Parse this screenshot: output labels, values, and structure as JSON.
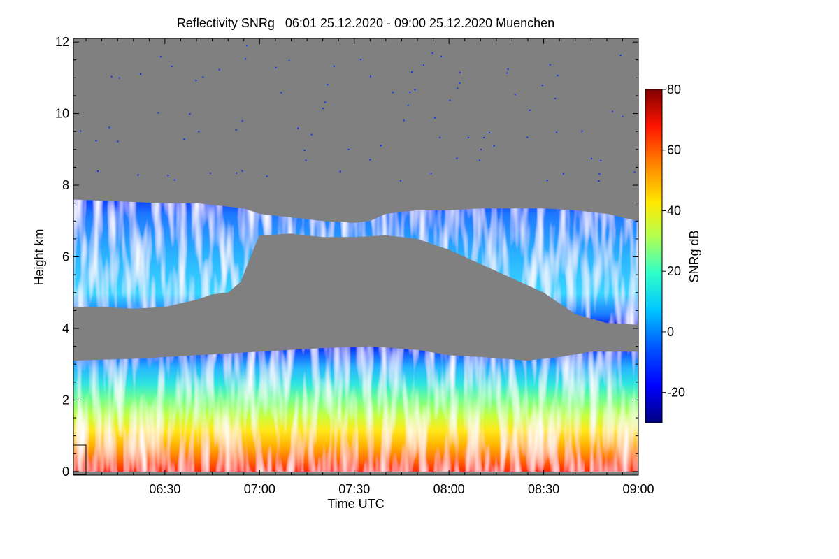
{
  "chart_data": {
    "type": "heatmap",
    "title": "Reflectivity SNRg   06:01 25.12.2020 - 09:00 25.12.2020 Muenchen",
    "xlabel": "Time UTC",
    "ylabel": "Height km",
    "xlim_minutes": [
      361,
      540
    ],
    "x_ticks": [
      {
        "value": 390,
        "label": "06:30"
      },
      {
        "value": 420,
        "label": "07:00"
      },
      {
        "value": 450,
        "label": "07:30"
      },
      {
        "value": 480,
        "label": "08:00"
      },
      {
        "value": 510,
        "label": "08:30"
      },
      {
        "value": 540,
        "label": "09:00"
      }
    ],
    "ylim": [
      -0.1,
      12.1
    ],
    "y_ticks": [
      0,
      2,
      4,
      6,
      8,
      10,
      12
    ],
    "background_color": "#808080",
    "colorbar": {
      "label": "SNRg dB",
      "range": [
        -30,
        80
      ],
      "ticks": [
        -20,
        0,
        20,
        40,
        60,
        80
      ],
      "colormap": "jet"
    },
    "layers": [
      {
        "name": "upper cloud layer",
        "top": [
          [
            361,
            7.6
          ],
          [
            375,
            7.55
          ],
          [
            390,
            7.5
          ],
          [
            400,
            7.5
          ],
          [
            410,
            7.4
          ],
          [
            415,
            7.35
          ],
          [
            420,
            7.2
          ],
          [
            430,
            7.1
          ],
          [
            440,
            7.0
          ],
          [
            450,
            6.95
          ],
          [
            455,
            7.0
          ],
          [
            460,
            7.2
          ],
          [
            470,
            7.3
          ],
          [
            480,
            7.3
          ],
          [
            490,
            7.35
          ],
          [
            500,
            7.35
          ],
          [
            510,
            7.35
          ],
          [
            520,
            7.3
          ],
          [
            530,
            7.2
          ],
          [
            540,
            7.0
          ]
        ],
        "bottom": [
          [
            361,
            4.6
          ],
          [
            370,
            4.6
          ],
          [
            380,
            4.55
          ],
          [
            390,
            4.6
          ],
          [
            400,
            4.8
          ],
          [
            405,
            4.95
          ],
          [
            410,
            5.0
          ],
          [
            414,
            5.3
          ],
          [
            418,
            6.2
          ],
          [
            420,
            6.6
          ],
          [
            430,
            6.65
          ],
          [
            440,
            6.55
          ],
          [
            450,
            6.55
          ],
          [
            460,
            6.6
          ],
          [
            470,
            6.5
          ],
          [
            480,
            6.2
          ],
          [
            490,
            5.8
          ],
          [
            500,
            5.4
          ],
          [
            510,
            5.0
          ],
          [
            520,
            4.4
          ],
          [
            530,
            4.15
          ],
          [
            540,
            4.1
          ]
        ],
        "snr_range_db": [
          -25,
          10
        ]
      },
      {
        "name": "lower precipitation layer",
        "top": [
          [
            361,
            3.1
          ],
          [
            380,
            3.15
          ],
          [
            400,
            3.25
          ],
          [
            420,
            3.35
          ],
          [
            440,
            3.45
          ],
          [
            455,
            3.5
          ],
          [
            470,
            3.4
          ],
          [
            480,
            3.25
          ],
          [
            490,
            3.2
          ],
          [
            505,
            3.1
          ],
          [
            515,
            3.2
          ],
          [
            525,
            3.35
          ],
          [
            540,
            3.35
          ]
        ],
        "bottom": [
          [
            361,
            0
          ],
          [
            540,
            0
          ]
        ],
        "snr_range_db": [
          -25,
          70
        ]
      }
    ]
  }
}
